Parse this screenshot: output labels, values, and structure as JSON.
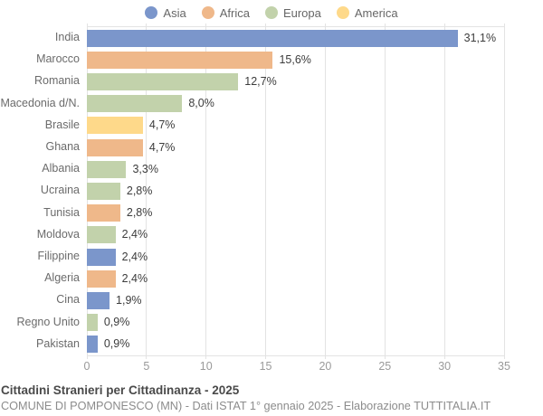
{
  "legend": {
    "items": [
      {
        "label": "Asia",
        "color": "#7b96cb"
      },
      {
        "label": "Africa",
        "color": "#efb88a"
      },
      {
        "label": "Europa",
        "color": "#c2d2ab"
      },
      {
        "label": "America",
        "color": "#fed98a"
      }
    ]
  },
  "chart_data": {
    "type": "bar",
    "orientation": "horizontal",
    "title": "Cittadini Stranieri per Cittadinanza - 2025",
    "categories": [
      "India",
      "Marocco",
      "Romania",
      "Macedonia d/N.",
      "Brasile",
      "Ghana",
      "Albania",
      "Ucraina",
      "Tunisia",
      "Moldova",
      "Filippine",
      "Algeria",
      "Cina",
      "Regno Unito",
      "Pakistan"
    ],
    "values": [
      31.1,
      15.6,
      12.7,
      8.0,
      4.7,
      4.7,
      3.3,
      2.8,
      2.8,
      2.4,
      2.4,
      2.4,
      1.9,
      0.9,
      0.9
    ],
    "value_labels": [
      "31,1%",
      "15,6%",
      "12,7%",
      "8,0%",
      "4,7%",
      "4,7%",
      "3,3%",
      "2,8%",
      "2,8%",
      "2,4%",
      "2,4%",
      "2,4%",
      "1,9%",
      "0,9%",
      "0,9%"
    ],
    "groups": [
      "Asia",
      "Africa",
      "Europa",
      "Europa",
      "America",
      "Africa",
      "Europa",
      "Europa",
      "Africa",
      "Europa",
      "Asia",
      "Africa",
      "Asia",
      "Europa",
      "Asia"
    ],
    "group_colors": {
      "Asia": "#7b96cb",
      "Africa": "#efb88a",
      "Europa": "#c2d2ab",
      "America": "#fed98a"
    },
    "xlim": [
      0,
      35
    ],
    "xticks": [
      0,
      5,
      10,
      15,
      20,
      25,
      30,
      35
    ],
    "grid": "vertical",
    "legend_position": "top"
  },
  "footer": {
    "title": "Cittadini Stranieri per Cittadinanza - 2025",
    "subtitle": "COMUNE DI POMPONESCO (MN) - Dati ISTAT 1° gennaio 2025 - Elaborazione TUTTITALIA.IT"
  }
}
